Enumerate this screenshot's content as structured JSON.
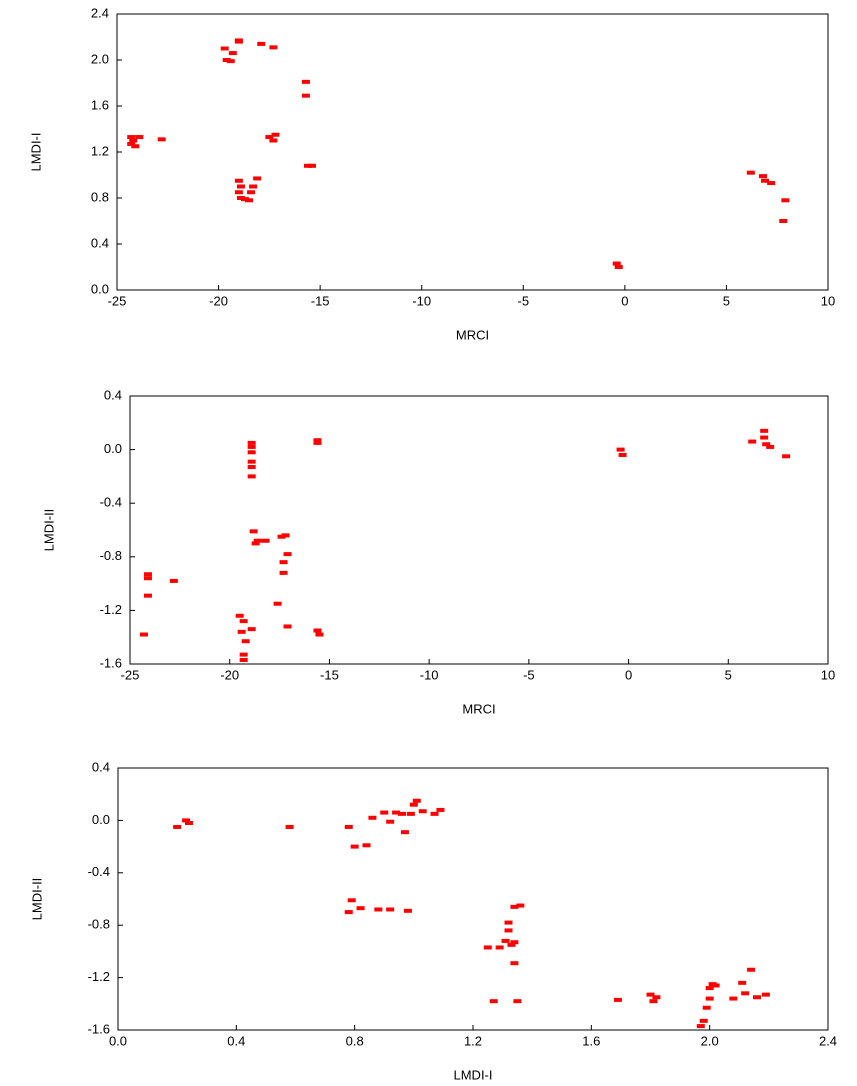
{
  "chart_data": [
    {
      "type": "scatter",
      "xlabel": "MRCI",
      "ylabel": "LMDI-I",
      "color": "#ff0000",
      "xlim": [
        -25,
        10
      ],
      "ylim": [
        0,
        2.4
      ],
      "xticks": [
        -25,
        -20,
        -15,
        -10,
        -5,
        0,
        5,
        10
      ],
      "yticks": [
        {
          "value": 0,
          "label": "0.0"
        },
        0.4,
        0.8,
        1.2,
        1.6,
        {
          "value": 2,
          "label": "2.0"
        },
        2.4
      ],
      "x": [
        -24.3,
        -24.2,
        -24.1,
        -24.3,
        -23.9,
        -22.8,
        -19.7,
        -19.6,
        -19.4,
        -19.3,
        -19.0,
        -19.0,
        -17.9,
        -17.3,
        -19.0,
        -18.9,
        -19.0,
        -18.9,
        -18.7,
        -18.5,
        -18.4,
        -18.3,
        -18.1,
        -17.5,
        -17.3,
        -17.2,
        -15.7,
        -15.7,
        -15.6,
        -15.4,
        -0.4,
        -0.3,
        6.2,
        6.8,
        6.9,
        7.2,
        7.9,
        7.8
      ],
      "y": [
        1.33,
        1.3,
        1.25,
        1.27,
        1.33,
        1.31,
        2.1,
        2.0,
        1.99,
        2.06,
        2.17,
        2.16,
        2.14,
        2.11,
        0.95,
        0.9,
        0.85,
        0.8,
        0.79,
        0.78,
        0.85,
        0.9,
        0.97,
        1.33,
        1.3,
        1.35,
        1.81,
        1.69,
        1.08,
        1.08,
        0.23,
        0.2,
        1.02,
        0.99,
        0.95,
        0.93,
        0.78,
        0.6
      ]
    },
    {
      "type": "scatter",
      "xlabel": "MRCI",
      "ylabel": "LMDI-II",
      "color": "#ff0000",
      "xlim": [
        -25,
        10
      ],
      "ylim": [
        -1.6,
        0.4
      ],
      "xticks": [
        -25,
        -20,
        -15,
        -10,
        -5,
        0,
        5,
        10
      ],
      "yticks": [
        -1.6,
        -1.2,
        -0.8,
        -0.4,
        {
          "value": 0,
          "label": "0.0"
        },
        0.4
      ],
      "x": [
        -24.3,
        -24.1,
        -24.1,
        -24.1,
        -22.8,
        -19.5,
        -19.4,
        -19.3,
        -19.3,
        -19.3,
        -19.2,
        -18.9,
        -18.9,
        -18.9,
        -18.9,
        -18.9,
        -18.9,
        -18.9,
        -18.8,
        -18.6,
        -18.7,
        -18.2,
        -17.6,
        -17.4,
        -17.2,
        -17.3,
        -17.3,
        -17.1,
        -17.1,
        -15.6,
        -15.6,
        -15.6,
        -15.5,
        -0.4,
        -0.3,
        6.2,
        6.8,
        6.8,
        6.9,
        7.1,
        7.9
      ],
      "y": [
        -1.38,
        -0.96,
        -0.93,
        -1.09,
        -0.98,
        -1.24,
        -1.36,
        -1.28,
        -1.53,
        -1.57,
        -1.43,
        -1.34,
        0.05,
        0.02,
        -0.02,
        -0.09,
        -0.13,
        -0.2,
        -0.61,
        -0.68,
        -0.7,
        -0.68,
        -1.15,
        -0.65,
        -0.64,
        -0.84,
        -0.92,
        -0.78,
        -1.32,
        0.07,
        0.05,
        -1.35,
        -1.38,
        0.0,
        -0.04,
        0.06,
        0.14,
        0.09,
        0.04,
        0.02,
        -0.05
      ]
    },
    {
      "type": "scatter",
      "xlabel": "LMDI-I",
      "ylabel": "LMDI-II",
      "color": "#ff0000",
      "xlim": [
        0,
        2.4
      ],
      "ylim": [
        -1.6,
        0.4
      ],
      "xticks": [
        {
          "value": 0,
          "label": "0.0"
        },
        0.4,
        0.8,
        1.2,
        1.6,
        {
          "value": 2,
          "label": "2.0"
        },
        2.4
      ],
      "yticks": [
        -1.6,
        -1.2,
        -0.8,
        -0.4,
        {
          "value": 0,
          "label": "0.0"
        },
        0.4
      ],
      "x": [
        0.2,
        0.23,
        0.24,
        0.58,
        0.78,
        0.79,
        0.78,
        0.8,
        0.82,
        0.84,
        0.86,
        0.88,
        0.92,
        0.9,
        0.92,
        0.94,
        0.96,
        0.97,
        0.98,
        0.99,
        1.0,
        1.01,
        1.03,
        1.07,
        1.09,
        1.25,
        1.27,
        1.29,
        1.31,
        1.32,
        1.32,
        1.33,
        1.34,
        1.34,
        1.35,
        1.34,
        1.36,
        1.69,
        1.8,
        1.81,
        1.82,
        1.97,
        1.98,
        1.99,
        2.0,
        2.0,
        2.01,
        2.02,
        2.08,
        2.11,
        2.12,
        2.14,
        2.16,
        2.19
      ],
      "y": [
        -0.05,
        0.0,
        -0.02,
        -0.05,
        -0.05,
        -0.61,
        -0.7,
        -0.2,
        -0.67,
        -0.19,
        0.02,
        -0.68,
        -0.68,
        0.06,
        -0.01,
        0.06,
        0.05,
        -0.09,
        -0.69,
        0.05,
        0.12,
        0.15,
        0.07,
        0.05,
        0.08,
        -0.97,
        -1.38,
        -0.97,
        -0.92,
        -0.84,
        -0.78,
        -0.95,
        -0.93,
        -1.09,
        -1.38,
        -0.66,
        -0.65,
        -1.37,
        -1.33,
        -1.38,
        -1.35,
        -1.57,
        -1.53,
        -1.43,
        -1.36,
        -1.28,
        -1.25,
        -1.26,
        -1.36,
        -1.24,
        -1.32,
        -1.14,
        -1.35,
        -1.33
      ]
    }
  ]
}
